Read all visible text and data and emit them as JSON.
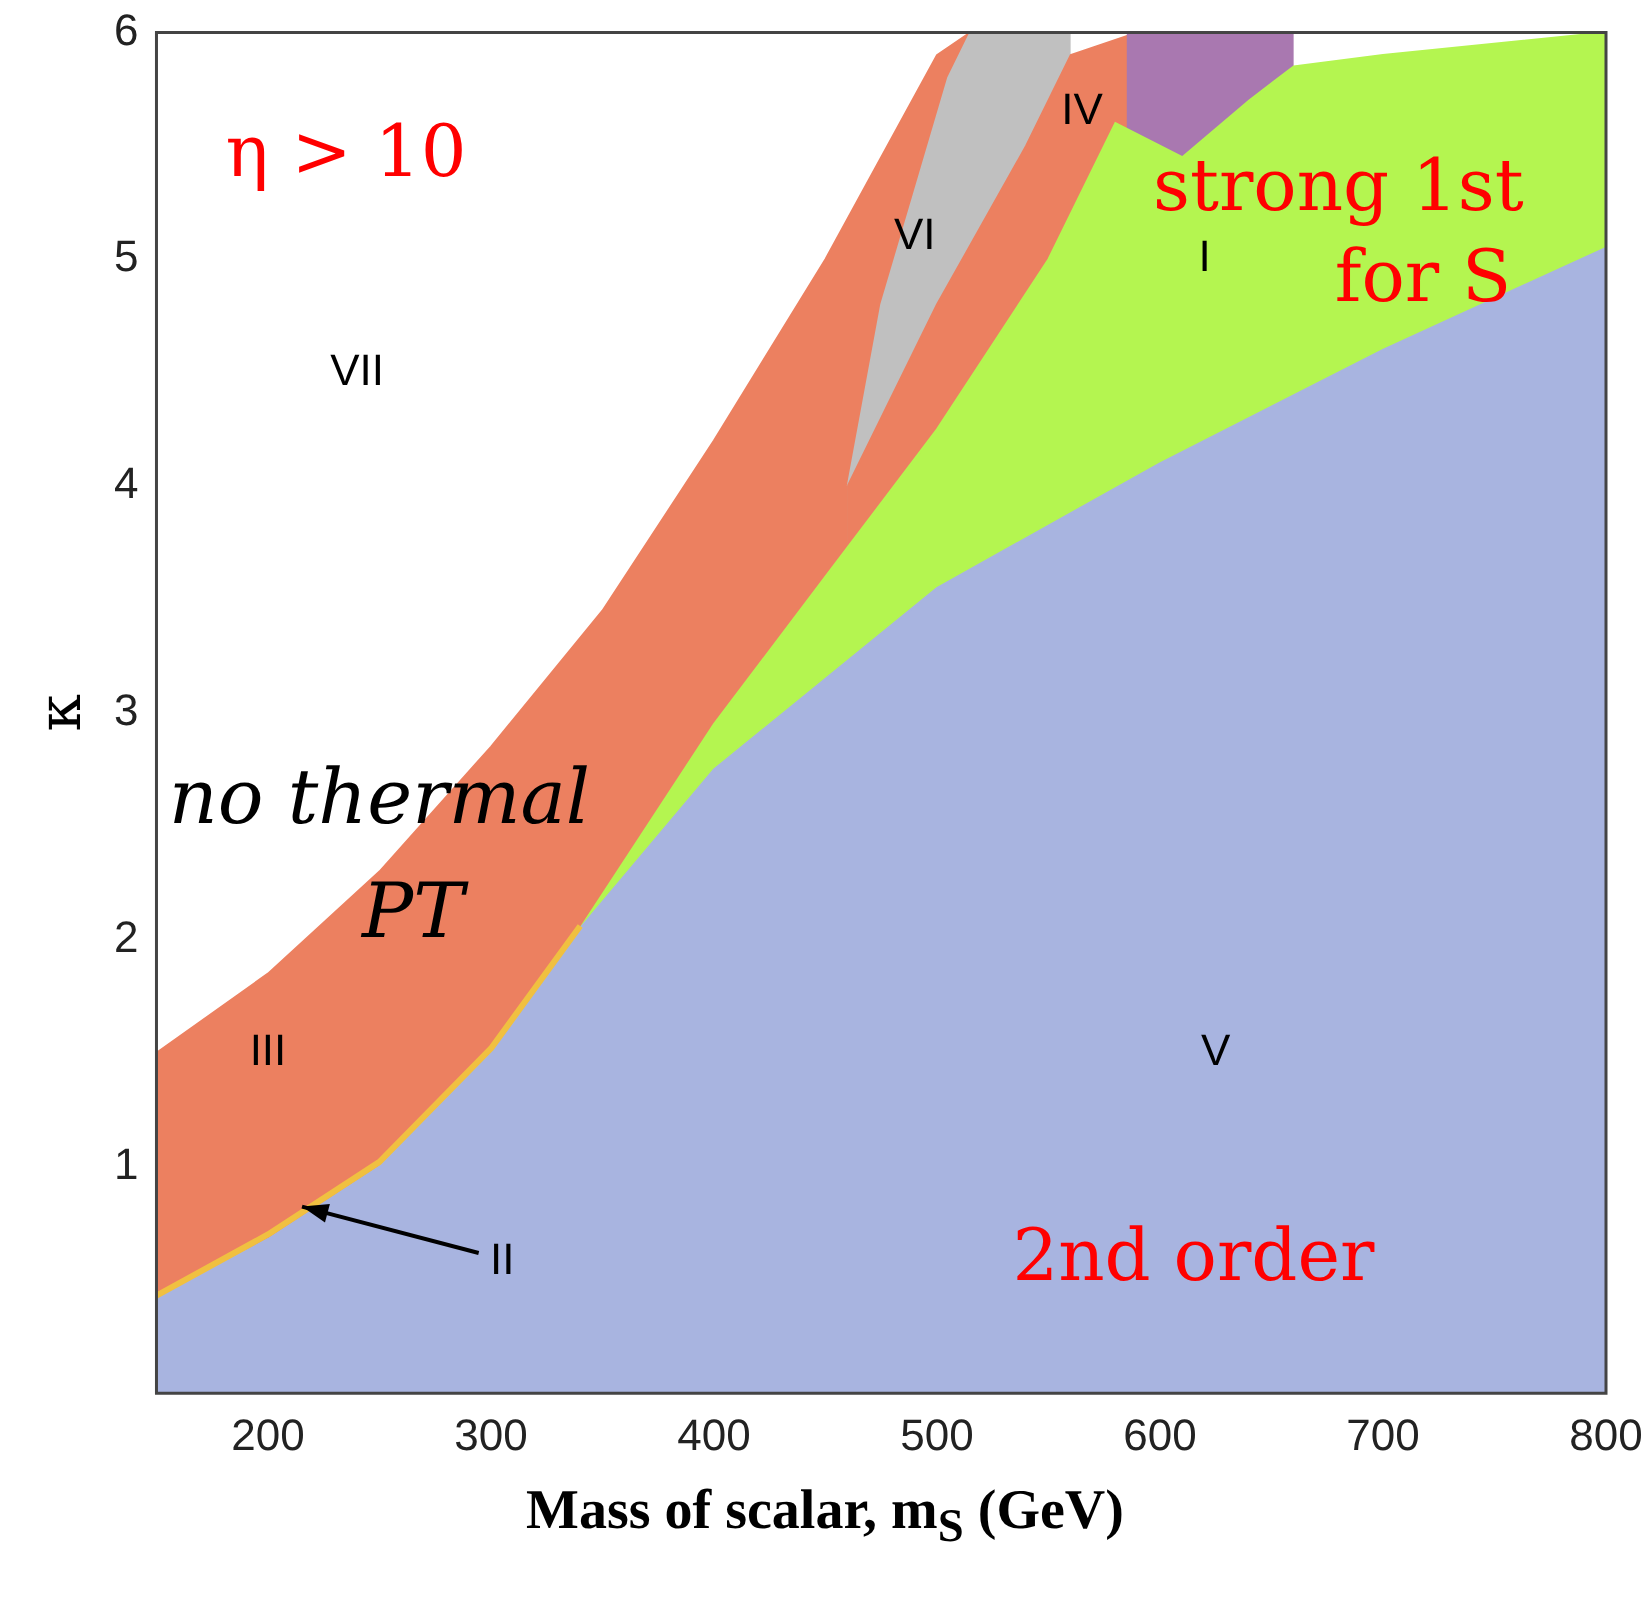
{
  "chart_data": {
    "type": "area",
    "xlabel": "Mass of scalar, m$_{S}$ (GeV)",
    "ylabel": "κ",
    "xlim": [
      150,
      800
    ],
    "xticks": [
      200,
      300,
      400,
      500,
      600,
      700,
      800
    ],
    "ylim": [
      0,
      6
    ],
    "yticks": [
      1,
      2,
      3,
      4,
      5,
      6
    ],
    "grid": false,
    "legend": false,
    "series": [
      {
        "color": "#ec8060",
        "x": [
          150,
          200,
          250,
          300,
          350,
          400,
          450,
          500,
          515
        ],
        "values": [
          1.5,
          1.85,
          2.3,
          2.85,
          3.45,
          4.2,
          5.0,
          5.9,
          6
        ]
      },
      {
        "color": "#c0c0c0",
        "x": [
          460,
          475,
          490,
          505,
          515,
          560
        ],
        "values": [
          4.0,
          4.8,
          5.3,
          5.8,
          6,
          6
        ]
      },
      {
        "color": "#ec8060",
        "x": [
          460,
          500,
          540,
          560,
          590
        ],
        "values": [
          4.0,
          4.8,
          5.5,
          5.9,
          6
        ]
      },
      {
        "color": "#a978b0",
        "x": [
          585,
          620,
          660
        ],
        "values": [
          6,
          6,
          6
        ]
      },
      {
        "color": "#b4f550",
        "x": [
          340,
          400,
          450,
          500,
          550,
          580,
          610,
          640,
          660,
          700,
          800
        ],
        "values": [
          2.05,
          2.95,
          3.6,
          4.25,
          5.0,
          5.6,
          5.45,
          5.7,
          5.85,
          5.9,
          6.0
        ]
      },
      {
        "color": "#a8b4e0",
        "x": [
          150,
          200,
          250,
          300,
          340,
          400,
          500,
          600,
          700,
          800
        ],
        "values": [
          0.42,
          0.68,
          1.0,
          1.5,
          2.05,
          2.75,
          3.55,
          4.1,
          4.6,
          5.05
        ]
      },
      {
        "type": "line",
        "color": "#f0c040",
        "x": [
          150,
          200,
          250,
          300,
          340
        ],
        "values": [
          0.43,
          0.7,
          1.02,
          1.52,
          2.06
        ]
      }
    ],
    "annotations": [
      "η > 10",
      "VII",
      "VI",
      "IV",
      "I",
      "strong 1st",
      "for S",
      "no thermal",
      "PT",
      "III",
      {
        "text": "II",
        "x": 215,
        "y": 0.82
      },
      "V",
      "2nd order"
    ]
  }
}
